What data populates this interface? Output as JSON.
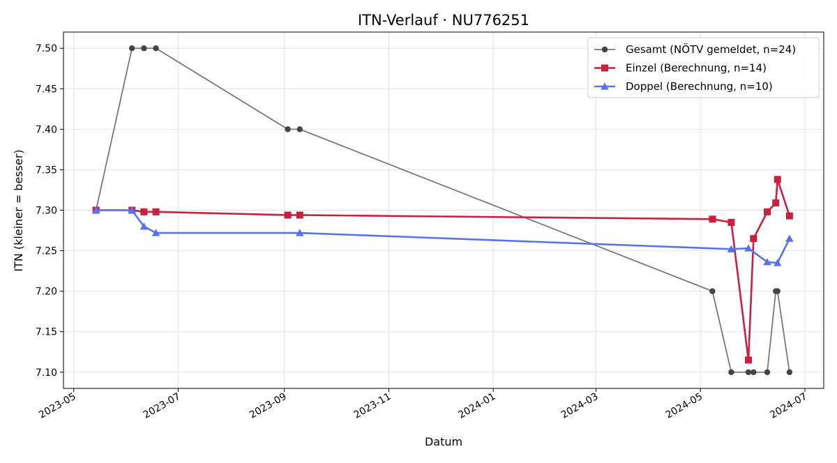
{
  "chart_data": {
    "type": "line",
    "title": "ITN-Verlauf · NU776251",
    "xlabel": "Datum",
    "ylabel": "ITN  (kleiner = besser)",
    "x_ticks": [
      "2023-05",
      "2023-07",
      "2023-09",
      "2023-11",
      "2024-01",
      "2024-03",
      "2024-05",
      "2024-07"
    ],
    "y_ticks": [
      "7.10",
      "7.15",
      "7.20",
      "7.25",
      "7.30",
      "7.35",
      "7.40",
      "7.45",
      "7.50"
    ],
    "xlim": [
      "2023-04-25",
      "2024-07-12"
    ],
    "ylim": [
      7.08,
      7.52
    ],
    "grid": true,
    "legend_position": "top-right",
    "series": [
      {
        "name": "Gesamt (NÖTV gemeldet, n=24)",
        "color": "#777777",
        "marker": "circle",
        "marker_color": "#444444",
        "line_width": 1.8,
        "points": [
          [
            "2023-05-14",
            7.3
          ],
          [
            "2023-06-04",
            7.5
          ],
          [
            "2023-06-11",
            7.5
          ],
          [
            "2023-06-18",
            7.5
          ],
          [
            "2023-09-03",
            7.4
          ],
          [
            "2023-09-10",
            7.4
          ],
          [
            "2024-05-08",
            7.2
          ],
          [
            "2024-05-19",
            7.1
          ],
          [
            "2024-05-29",
            7.1
          ],
          [
            "2024-06-01",
            7.1
          ],
          [
            "2024-06-09",
            7.1
          ],
          [
            "2024-06-14",
            7.2
          ],
          [
            "2024-06-15",
            7.2
          ],
          [
            "2024-06-22",
            7.1
          ]
        ]
      },
      {
        "name": "Einzel (Berechnung, n=14)",
        "color": "#c8203f",
        "marker": "square",
        "marker_color": "#c8203f",
        "line_width": 2.6,
        "points": [
          [
            "2023-05-14",
            7.3
          ],
          [
            "2023-06-04",
            7.3
          ],
          [
            "2023-06-11",
            7.298
          ],
          [
            "2023-06-18",
            7.298
          ],
          [
            "2023-09-03",
            7.294
          ],
          [
            "2023-09-10",
            7.294
          ],
          [
            "2024-05-08",
            7.289
          ],
          [
            "2024-05-19",
            7.285
          ],
          [
            "2024-05-29",
            7.115
          ],
          [
            "2024-06-01",
            7.265
          ],
          [
            "2024-06-09",
            7.298
          ],
          [
            "2024-06-14",
            7.309
          ],
          [
            "2024-06-15",
            7.338
          ],
          [
            "2024-06-22",
            7.293
          ]
        ]
      },
      {
        "name": "Doppel (Berechnung, n=10)",
        "color": "#5873e8",
        "marker": "triangle",
        "marker_color": "#5873e8",
        "line_width": 2.6,
        "points": [
          [
            "2023-05-14",
            7.3
          ],
          [
            "2023-06-04",
            7.3
          ],
          [
            "2023-06-11",
            7.28
          ],
          [
            "2023-06-18",
            7.272
          ],
          [
            "2023-09-10",
            7.272
          ],
          [
            "2024-05-19",
            7.252
          ],
          [
            "2024-05-29",
            7.253
          ],
          [
            "2024-06-09",
            7.236
          ],
          [
            "2024-06-15",
            7.235
          ],
          [
            "2024-06-22",
            7.265
          ]
        ]
      }
    ]
  }
}
